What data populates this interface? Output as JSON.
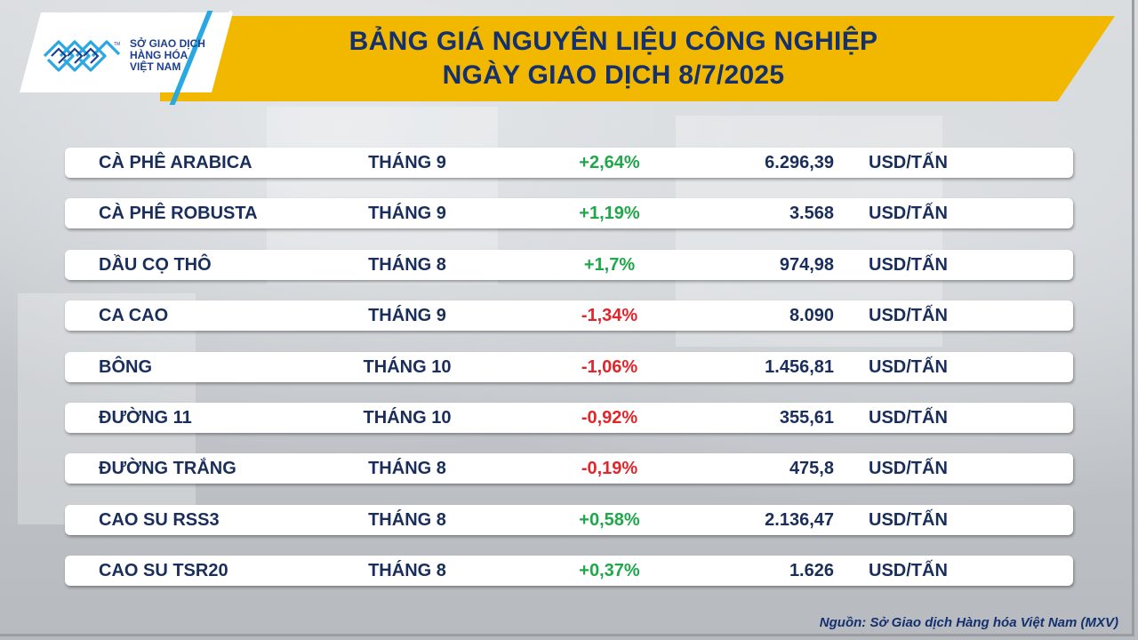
{
  "logo": {
    "line1": "SỞ GIAO DỊCH",
    "line2": "HÀNG HÓA",
    "line3": "VIỆT NAM",
    "tm": "TM"
  },
  "title": {
    "line1": "BẢNG GIÁ NGUYÊN LIỆU CÔNG NGHIỆP",
    "line2": "NGÀY GIAO DỊCH 8/7/2025"
  },
  "colors": {
    "banner": "#f2b800",
    "navy": "#14306e",
    "up": "#1fa84a",
    "down": "#e0262b",
    "logo_blue": "#2aa8e0"
  },
  "rows": [
    {
      "name": "CÀ PHÊ ARABICA",
      "month": "THÁNG 9",
      "change": "+2,64%",
      "direction": "up",
      "price": "6.296,39",
      "unit": "USD/TẤN"
    },
    {
      "name": "CÀ PHÊ ROBUSTA",
      "month": "THÁNG 9",
      "change": "+1,19%",
      "direction": "up",
      "price": "3.568",
      "unit": "USD/TẤN"
    },
    {
      "name": "DẦU CỌ THÔ",
      "month": "THÁNG 8",
      "change": "+1,7%",
      "direction": "up",
      "price": "974,98",
      "unit": "USD/TẤN"
    },
    {
      "name": "CA CAO",
      "month": "THÁNG 9",
      "change": "-1,34%",
      "direction": "down",
      "price": "8.090",
      "unit": "USD/TẤN"
    },
    {
      "name": "BÔNG",
      "month": "THÁNG 10",
      "change": "-1,06%",
      "direction": "down",
      "price": "1.456,81",
      "unit": "USD/TẤN"
    },
    {
      "name": "ĐƯỜNG 11",
      "month": "THÁNG 10",
      "change": "-0,92%",
      "direction": "down",
      "price": "355,61",
      "unit": "USD/TẤN"
    },
    {
      "name": "ĐƯỜNG TRẮNG",
      "month": "THÁNG 8",
      "change": "-0,19%",
      "direction": "down",
      "price": "475,8",
      "unit": "USD/TẤN"
    },
    {
      "name": "CAO SU RSS3",
      "month": "THÁNG 8",
      "change": "+0,58%",
      "direction": "up",
      "price": "2.136,47",
      "unit": "USD/TẤN"
    },
    {
      "name": "CAO SU TSR20",
      "month": "THÁNG 8",
      "change": "+0,37%",
      "direction": "up",
      "price": "1.626",
      "unit": "USD/TẤN"
    }
  ],
  "source": "Nguồn: Sở Giao dịch Hàng hóa Việt Nam (MXV)"
}
